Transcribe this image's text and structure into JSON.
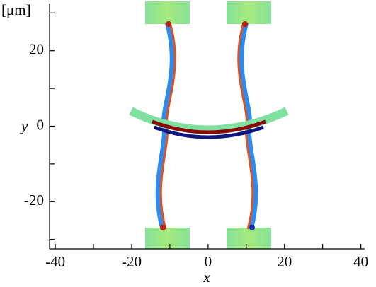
{
  "chart_data": {
    "type": "field",
    "x_label": "x",
    "y_label": "y",
    "unit_label": "[μm]",
    "xlim": [
      -41.5,
      41
    ],
    "ylim": [
      -32.5,
      32.5
    ],
    "xticks": [
      -40,
      -20,
      0,
      20,
      40
    ],
    "yticks": [
      -20,
      0,
      20
    ],
    "minor_xticks": [
      -30,
      -10,
      10,
      30
    ],
    "minor_yticks": [
      -30,
      -10,
      10,
      30
    ]
  }
}
